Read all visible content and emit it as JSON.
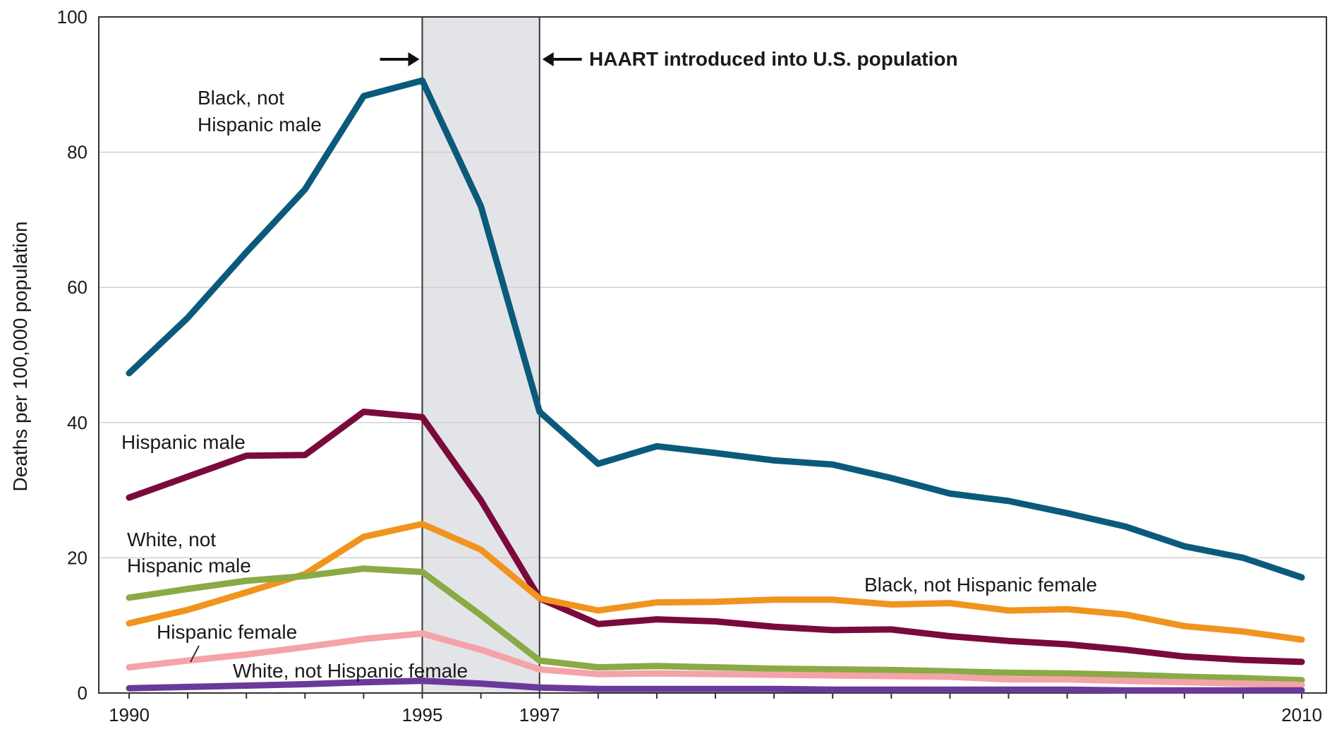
{
  "chart_data": {
    "type": "line",
    "title": "",
    "xlabel": "",
    "ylabel": "Deaths per 100,000 population",
    "xlim": [
      1990,
      2010
    ],
    "ylim": [
      0,
      100
    ],
    "x_ticks": [
      1990,
      1995,
      1997,
      2010
    ],
    "y_ticks": [
      0,
      20,
      40,
      60,
      80,
      100
    ],
    "grid": "horizontal",
    "x": [
      1990,
      1991,
      1992,
      1993,
      1994,
      1995,
      1996,
      1997,
      1998,
      1999,
      2000,
      2001,
      2002,
      2003,
      2004,
      2005,
      2006,
      2007,
      2008,
      2009,
      2010
    ],
    "series": [
      {
        "name": "Black, not Hispanic male",
        "color": "#0b5a7c",
        "values": [
          47.3,
          55.5,
          65.2,
          74.5,
          88.3,
          90.6,
          72.0,
          41.6,
          33.9,
          36.5,
          35.5,
          34.4,
          33.8,
          31.8,
          29.5,
          28.4,
          26.6,
          24.6,
          21.7,
          20.0,
          17.1
        ]
      },
      {
        "name": "Hispanic male",
        "color": "#7a0a3c",
        "values": [
          28.9,
          32.0,
          35.1,
          35.2,
          41.6,
          40.8,
          28.5,
          14.0,
          10.2,
          10.9,
          10.6,
          9.8,
          9.3,
          9.4,
          8.4,
          7.7,
          7.2,
          6.4,
          5.4,
          4.9,
          4.6
        ]
      },
      {
        "name": "Black, not Hispanic female",
        "color": "#f0941e",
        "values": [
          10.3,
          12.3,
          14.9,
          17.6,
          23.1,
          25.0,
          21.2,
          14.0,
          12.2,
          13.4,
          13.5,
          13.8,
          13.8,
          13.1,
          13.3,
          12.2,
          12.4,
          11.6,
          9.9,
          9.1,
          7.9
        ]
      },
      {
        "name": "White, not Hispanic male",
        "color": "#8aaa45",
        "values": [
          14.1,
          15.4,
          16.6,
          17.3,
          18.4,
          17.9,
          11.5,
          4.8,
          3.8,
          4.0,
          3.8,
          3.6,
          3.5,
          3.4,
          3.2,
          3.0,
          2.9,
          2.7,
          2.4,
          2.2,
          1.9
        ]
      },
      {
        "name": "Hispanic female",
        "color": "#f4a3a8",
        "values": [
          3.8,
          4.8,
          5.7,
          6.8,
          8.0,
          8.8,
          6.4,
          3.5,
          2.8,
          2.9,
          2.8,
          2.7,
          2.6,
          2.5,
          2.4,
          2.0,
          2.0,
          1.8,
          1.6,
          1.4,
          1.2
        ]
      },
      {
        "name": "White, not Hispanic female",
        "color": "#6a3a9a",
        "values": [
          0.7,
          0.9,
          1.1,
          1.3,
          1.6,
          1.8,
          1.4,
          0.8,
          0.6,
          0.6,
          0.6,
          0.6,
          0.5,
          0.5,
          0.5,
          0.5,
          0.5,
          0.4,
          0.4,
          0.4,
          0.4
        ]
      }
    ],
    "shaded_region": {
      "x_start": 1995,
      "x_end": 1997,
      "color": "#e3e4e8"
    },
    "annotation": "HAART introduced into U.S. population"
  }
}
